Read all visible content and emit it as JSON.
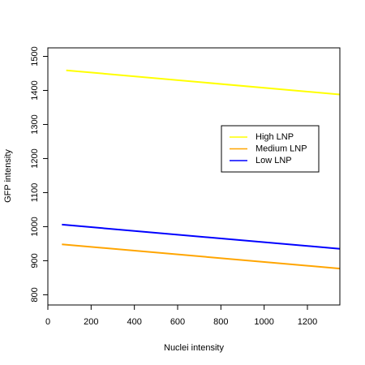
{
  "chart_data": {
    "type": "line",
    "title": "",
    "xlabel": "Nuclei intensity",
    "ylabel": "GFP intensity",
    "xlim": [
      0,
      1350
    ],
    "ylim": [
      770,
      1525
    ],
    "x_ticks": [
      "0",
      "200",
      "400",
      "600",
      "800",
      "1000",
      "1200"
    ],
    "y_ticks": [
      "800",
      "900",
      "1000",
      "1100",
      "1200",
      "1300",
      "1400",
      "1500"
    ],
    "grid": false,
    "legend_position": "right",
    "series": [
      {
        "name": "High LNP",
        "color": "#FFFF00",
        "x": [
          85,
          1350
        ],
        "y": [
          1459,
          1388
        ]
      },
      {
        "name": "Medium LNP",
        "color": "#FFA500",
        "x": [
          65,
          1350
        ],
        "y": [
          948,
          877
        ]
      },
      {
        "name": "Low LNP",
        "color": "#0000FF",
        "x": [
          65,
          1350
        ],
        "y": [
          1006,
          935
        ]
      }
    ]
  }
}
